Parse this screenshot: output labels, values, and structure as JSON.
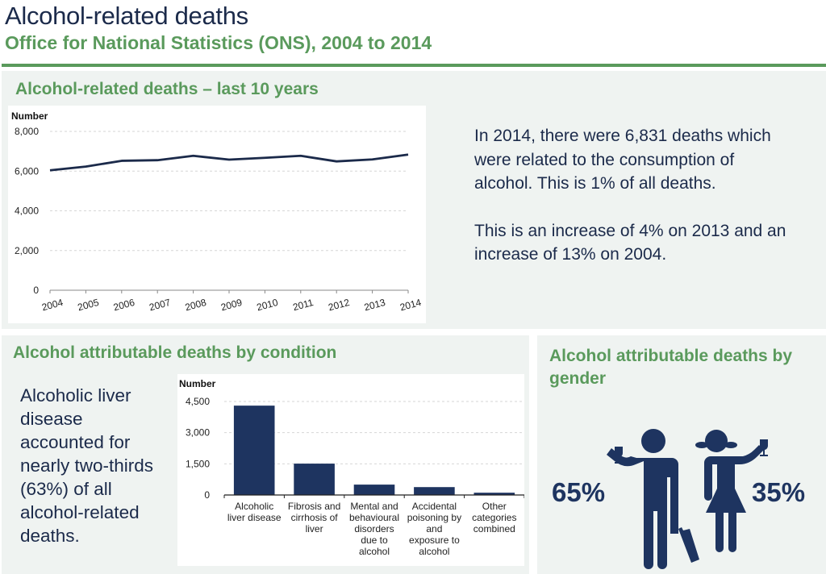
{
  "header": {
    "title": "Alcohol-related deaths",
    "subtitle": "Office for National Statistics (ONS), 2004 to 2014"
  },
  "colors": {
    "accent_green": "#5a9a5c",
    "navy": "#1e3460",
    "panel_bg": "#eff3f1"
  },
  "trend_panel": {
    "title": "Alcohol-related deaths – last 10 years",
    "summary_para1": "In 2014, there were 6,831 deaths which were related to the consumption of alcohol.  This is 1% of all deaths.",
    "summary_para2": "This is an increase of 4% on 2013 and an increase of 13% on 2004."
  },
  "condition_panel": {
    "title": "Alcohol attributable deaths by condition",
    "summary": "Alcoholic liver disease accounted for nearly two-thirds (63%) of all alcohol-related deaths."
  },
  "gender_panel": {
    "title": "Alcohol attributable deaths by gender",
    "male_pct": "65%",
    "female_pct": "35%",
    "male_icon": "man-with-wine-glass-and-bottle-icon",
    "female_icon": "woman-with-wine-glass-icon"
  },
  "chart_data": [
    {
      "type": "line",
      "title": "Alcohol-related deaths – last 10 years",
      "ylabel": "Number",
      "xlabel": "",
      "x": [
        "2004",
        "2005",
        "2006",
        "2007",
        "2008",
        "2009",
        "2010",
        "2011",
        "2012",
        "2013",
        "2014"
      ],
      "series": [
        {
          "name": "Alcohol-related deaths",
          "values": [
            6040,
            6230,
            6520,
            6550,
            6770,
            6580,
            6670,
            6770,
            6490,
            6590,
            6831
          ]
        }
      ],
      "ylim": [
        0,
        8000
      ],
      "yticks": [
        0,
        2000,
        4000,
        6000,
        8000
      ],
      "ytick_labels": [
        "0",
        "2,000",
        "4,000",
        "6,000",
        "8,000"
      ],
      "grid": true,
      "legend": "none"
    },
    {
      "type": "bar",
      "title": "Alcohol attributable deaths by condition",
      "ylabel": "Number",
      "xlabel": "",
      "categories": [
        "Alcoholic liver disease",
        "Fibrosis and cirrhosis of liver",
        "Mental and behavioural disorders due to alcohol",
        "Accidental poisoning by and exposure to alcohol",
        "Other categories combined"
      ],
      "category_lines": [
        [
          "Alcoholic",
          "liver disease"
        ],
        [
          "Fibrosis and",
          "cirrhosis of",
          "liver"
        ],
        [
          "Mental and",
          "behavioural",
          "disorders",
          "due to",
          "alcohol"
        ],
        [
          "Accidental",
          "poisoning by",
          "and",
          "exposure to",
          "alcohol"
        ],
        [
          "Other",
          "categories",
          "combined"
        ]
      ],
      "values": [
        4300,
        1510,
        500,
        380,
        110
      ],
      "ylim": [
        0,
        4500
      ],
      "yticks": [
        0,
        1500,
        3000,
        4500
      ],
      "ytick_labels": [
        "0",
        "1,500",
        "3,000",
        "4,500"
      ],
      "grid": true,
      "legend": "none"
    },
    {
      "type": "pie",
      "title": "Alcohol attributable deaths by gender",
      "categories": [
        "Male",
        "Female"
      ],
      "values": [
        65,
        35
      ],
      "unit": "%"
    }
  ]
}
